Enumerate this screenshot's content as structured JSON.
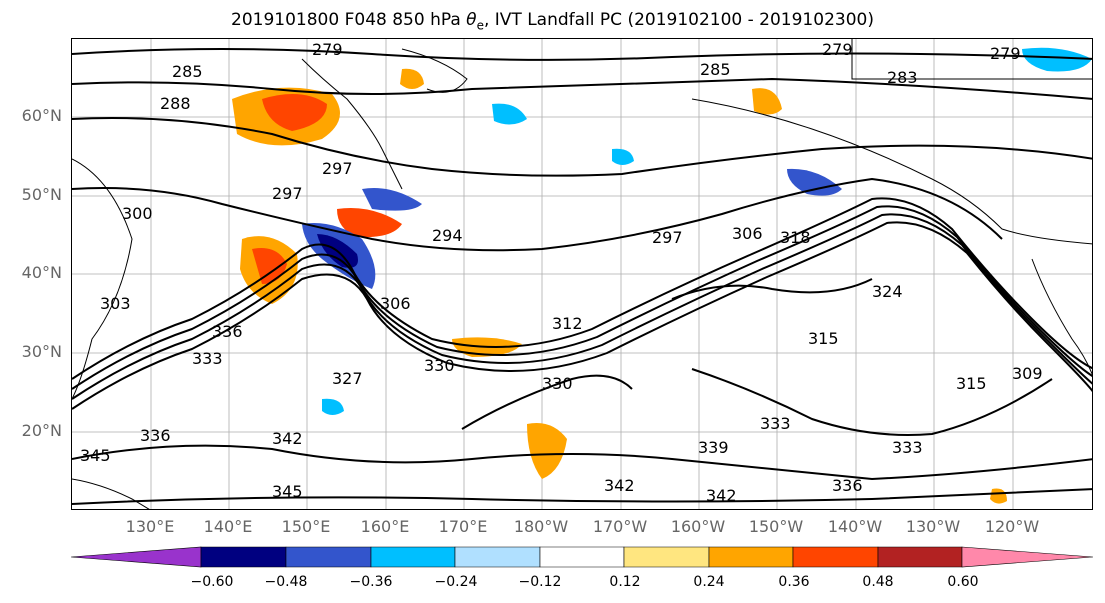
{
  "title_prefix": "2019101800 F048 850 hPa ",
  "title_symbol": "θ",
  "title_subscript": "e",
  "title_suffix": ", IVT Landfall PC (2019102100 - 2019102300)",
  "lat_labels": [
    "60°N",
    "50°N",
    "40°N",
    "30°N",
    "20°N"
  ],
  "lon_labels": [
    "130°E",
    "140°E",
    "150°E",
    "160°E",
    "170°E",
    "180°W",
    "170°W",
    "160°W",
    "150°W",
    "140°W",
    "130°W",
    "120°W"
  ],
  "contour_labels": [
    "279",
    "285",
    "288",
    "279",
    "285",
    "279",
    "283",
    "297",
    "297",
    "294",
    "297",
    "306",
    "318",
    "300",
    "303",
    "306",
    "312",
    "324",
    "315",
    "333",
    "336",
    "330",
    "327",
    "330",
    "315",
    "309",
    "336",
    "345",
    "342",
    "345",
    "339",
    "333",
    "336",
    "342",
    "342",
    "333"
  ],
  "colorbar": {
    "colors": [
      "#9933cc",
      "#000080",
      "#3355cc",
      "#00bfff",
      "#b0e0ff",
      "#ffffff",
      "#ffe680",
      "#ffa500",
      "#ff4500",
      "#b22222",
      "#ff88aa"
    ],
    "tick_labels": [
      "−0.60",
      "−0.48",
      "−0.36",
      "−0.24",
      "−0.12",
      "0.12",
      "0.24",
      "0.36",
      "0.48",
      "0.60"
    ]
  },
  "colors": {
    "contour": "#000000",
    "grid": "#888888",
    "axis_label": "#666666"
  }
}
